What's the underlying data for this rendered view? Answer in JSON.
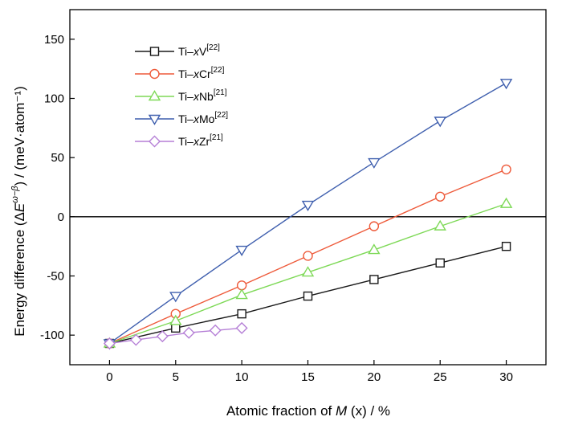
{
  "chart_data": {
    "type": "line",
    "xlabel": "Atomic fraction of M (x) / %",
    "ylabel": "Energy difference (ΔE^{ω−β}) / (meV·atom⁻¹)",
    "xlim": [
      -3,
      33
    ],
    "ylim": [
      -125,
      175
    ],
    "xticks": [
      0,
      5,
      10,
      15,
      20,
      25,
      30
    ],
    "yticks": [
      -100,
      -50,
      0,
      50,
      100,
      150
    ],
    "zero_line": true,
    "grid": false,
    "legend_position": "top-left",
    "series": [
      {
        "name": "Ti–xV[22]",
        "label_prefix": "Ti–",
        "label_var": "x",
        "label_elem": "V",
        "label_ref": "[22]",
        "color": "#1a1a1a",
        "marker": "square",
        "x": [
          0,
          5,
          10,
          15,
          20,
          25,
          30
        ],
        "y": [
          -107,
          -94,
          -82,
          -67,
          -53,
          -39,
          -25
        ]
      },
      {
        "name": "Ti–xCr[22]",
        "label_prefix": "Ti–",
        "label_var": "x",
        "label_elem": "Cr",
        "label_ref": "[22]",
        "color": "#ee5a3a",
        "marker": "circle",
        "x": [
          0,
          5,
          10,
          15,
          20,
          25,
          30
        ],
        "y": [
          -107,
          -82,
          -58,
          -33,
          -8,
          17,
          40
        ]
      },
      {
        "name": "Ti–xNb[21]",
        "label_prefix": "Ti–",
        "label_var": "x",
        "label_elem": "Nb",
        "label_ref": "[21]",
        "color": "#7ed957",
        "marker": "triangle-up",
        "x": [
          0,
          5,
          10,
          15,
          20,
          25,
          30
        ],
        "y": [
          -107,
          -88,
          -66,
          -47,
          -28,
          -8,
          11
        ]
      },
      {
        "name": "Ti–xMo[22]",
        "label_prefix": "Ti–",
        "label_var": "x",
        "label_elem": "Mo",
        "label_ref": "[22]",
        "color": "#3f5fae",
        "marker": "triangle-down",
        "x": [
          0,
          5,
          10,
          15,
          20,
          25,
          30
        ],
        "y": [
          -107,
          -67,
          -28,
          10,
          46,
          81,
          113
        ]
      },
      {
        "name": "Ti–xZr[21]",
        "label_prefix": "Ti–",
        "label_var": "x",
        "label_elem": "Zr",
        "label_ref": "[21]",
        "color": "#b57fd6",
        "marker": "diamond",
        "x": [
          0,
          2,
          4,
          6,
          8,
          10
        ],
        "y": [
          -107,
          -104,
          -101,
          -98,
          -96,
          -94
        ]
      }
    ]
  }
}
